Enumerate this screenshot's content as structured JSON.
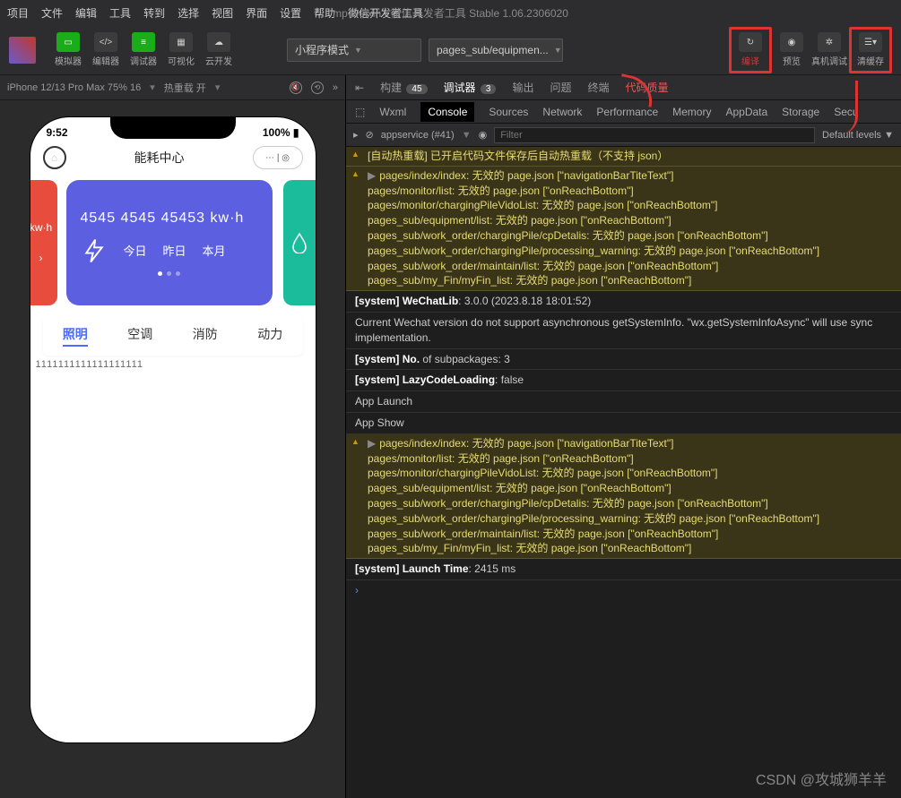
{
  "window_title": "mp-weixin - 微信开发者工具 Stable 1.06.2306020",
  "menu": [
    "项目",
    "文件",
    "编辑",
    "工具",
    "转到",
    "选择",
    "视图",
    "界面",
    "设置",
    "帮助",
    "微信开发者工具"
  ],
  "toolbar": {
    "simulator": "模拟器",
    "editor": "编辑器",
    "debugger": "调试器",
    "visualize": "可视化",
    "cloud": "云开发",
    "mode": "小程序模式",
    "path": "pages_sub/equipmen...",
    "compile": "编译",
    "preview": "预览",
    "remote": "真机调试",
    "cache": "清缓存"
  },
  "simbar": {
    "device": "iPhone 12/13 Pro Max 75% 16",
    "hot": "热重载 开"
  },
  "phone": {
    "time": "9:52",
    "battery": "100%",
    "title": "能耗中心",
    "card_value": "4545  4545 45453 kw·h",
    "left_unit": "kw·h",
    "today": "今日",
    "yesterday": "昨日",
    "month": "本月",
    "tabs": [
      "照明",
      "空调",
      "消防",
      "动力"
    ],
    "ones": "1111111111111111111"
  },
  "devtabs1": {
    "build": "构建",
    "build_n": "45",
    "debugger": "调试器",
    "debugger_n": "3",
    "output": "输出",
    "problems": "问题",
    "terminal": "终端",
    "quality": "代码质量"
  },
  "devtabs2": [
    "Wxml",
    "Console",
    "Sources",
    "Network",
    "Performance",
    "Memory",
    "AppData",
    "Storage",
    "Secu"
  ],
  "devtabs3": {
    "scope": "appservice (#41)",
    "filter": "Filter",
    "levels": "Default levels"
  },
  "logs": [
    {
      "t": "warn",
      "txt": "[自动热重载] 已开启代码文件保存后自动热重载（不支持 json）"
    },
    {
      "t": "warn",
      "arrow": true,
      "txt": "pages/index/index: 无效的 page.json [\"navigationBarTiteText\"]\npages/monitor/list: 无效的 page.json [\"onReachBottom\"]\npages/monitor/chargingPileVidoList: 无效的 page.json [\"onReachBottom\"]\npages_sub/equipment/list: 无效的 page.json [\"onReachBottom\"]\npages_sub/work_order/chargingPile/cpDetalis: 无效的 page.json [\"onReachBottom\"]\npages_sub/work_order/chargingPile/processing_warning: 无效的 page.json [\"onReachBottom\"]\npages_sub/work_order/maintain/list: 无效的 page.json [\"onReachBottom\"]\npages_sub/my_Fin/myFin_list: 无效的 page.json [\"onReachBottom\"]"
    },
    {
      "t": "sys",
      "txt": "[system] WeChatLib: 3.0.0 (2023.8.18 18:01:52)"
    },
    {
      "t": "sys",
      "txt": "Current Wechat version do not support asynchronous getSystemInfo. \"wx.getSystemInfoAsync\" will use sync implementation."
    },
    {
      "t": "sys",
      "txt": "[system] No. of subpackages: 3"
    },
    {
      "t": "sys",
      "txt": "[system] LazyCodeLoading: false"
    },
    {
      "t": "plain",
      "txt": "App Launch"
    },
    {
      "t": "plain",
      "txt": "App Show"
    },
    {
      "t": "warn",
      "arrow": true,
      "txt": "pages/index/index: 无效的 page.json [\"navigationBarTiteText\"]\npages/monitor/list: 无效的 page.json [\"onReachBottom\"]\npages/monitor/chargingPileVidoList: 无效的 page.json [\"onReachBottom\"]\npages_sub/equipment/list: 无效的 page.json [\"onReachBottom\"]\npages_sub/work_order/chargingPile/cpDetalis: 无效的 page.json [\"onReachBottom\"]\npages_sub/work_order/chargingPile/processing_warning: 无效的 page.json [\"onReachBottom\"]\npages_sub/work_order/maintain/list: 无效的 page.json [\"onReachBottom\"]\npages_sub/my_Fin/myFin_list: 无效的 page.json [\"onReachBottom\"]"
    },
    {
      "t": "sys",
      "txt": "[system] Launch Time: 2415 ms"
    }
  ],
  "watermark": "CSDN @攻城狮羊羊"
}
